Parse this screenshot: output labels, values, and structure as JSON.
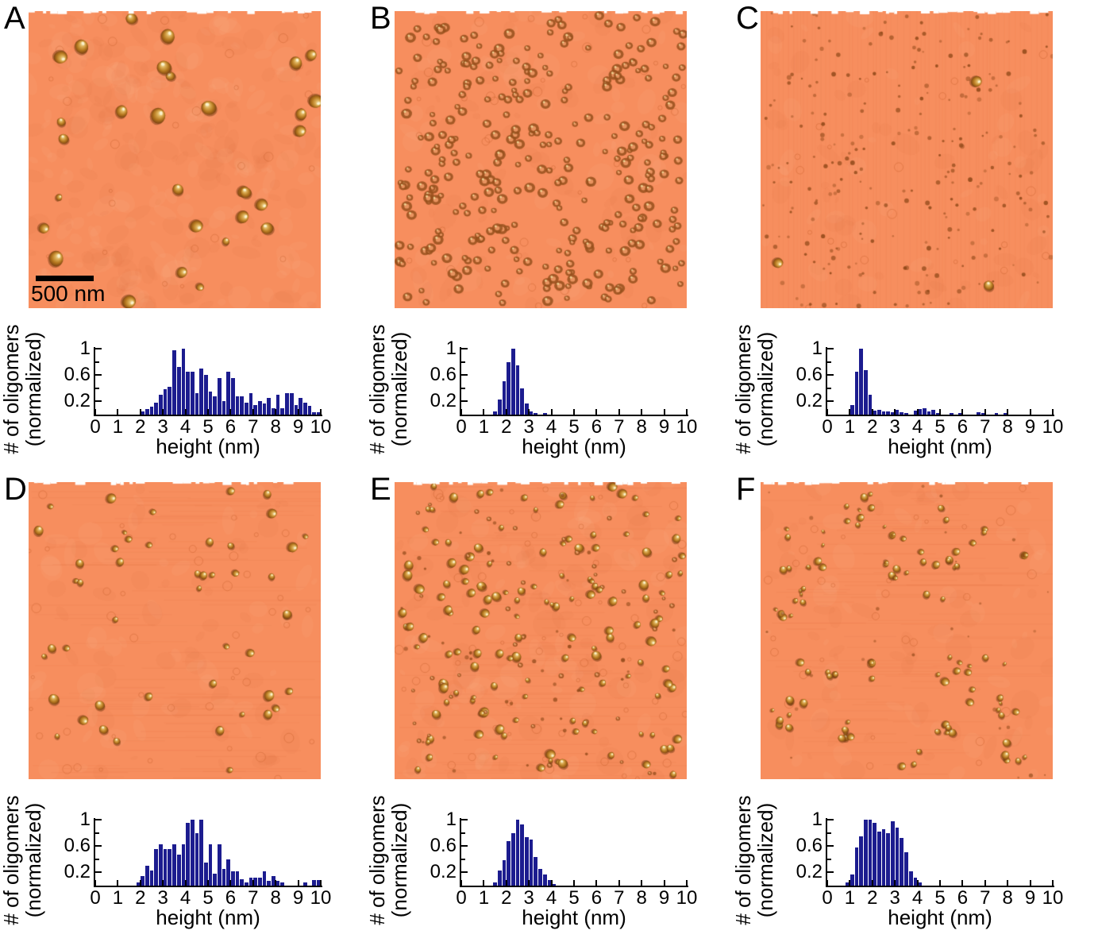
{
  "figure": {
    "axes": {
      "ylabel_line1": "# of oligomers",
      "ylabel_line2": "(normalized)",
      "xlabel": "height (nm)",
      "xticks": [
        "0",
        "1",
        "2",
        "3",
        "4",
        "5",
        "6",
        "7",
        "8",
        "9",
        "10"
      ],
      "yticks": [
        "1",
        "0.6",
        "0.2"
      ],
      "xlim": [
        0,
        10
      ],
      "ylim": [
        0,
        1
      ]
    },
    "colors": {
      "page_background": "#FFFFFF",
      "afm_background": "#F78E5E",
      "particle_body": "#C8963E",
      "particle_rim": "#7A4010",
      "particle_highlight": "#F4E8B8",
      "bar_color": "#1C1C8F",
      "axis_color": "#000000",
      "scalebar_color": "#000000"
    },
    "panels": [
      {
        "letter": "A",
        "scalebar": {
          "label": "500 nm"
        },
        "afm": {
          "style": "blobs",
          "count": 30,
          "rmin": 4,
          "rmax": 10,
          "mottle": 300,
          "ghosts": 28,
          "texture": "none"
        }
      },
      {
        "letter": "B",
        "afm": {
          "style": "rings",
          "count": 320,
          "rmin": 3.5,
          "rmax": 7,
          "mottle": 120,
          "ghosts": 40,
          "texture": "none"
        }
      },
      {
        "letter": "C",
        "afm": {
          "style": "dots",
          "count": 250,
          "rmin": 1.2,
          "rmax": 3,
          "mottle": 80,
          "ghosts": 20,
          "texture": "v",
          "specials": 3
        }
      },
      {
        "letter": "D",
        "afm": {
          "style": "blobs",
          "count": 48,
          "rmin": 2.5,
          "rmax": 7,
          "mottle": 90,
          "ghosts": 45,
          "texture": "h"
        }
      },
      {
        "letter": "E",
        "afm": {
          "style": "mixed",
          "count": 225,
          "rmin": 1.6,
          "rmax": 6.5,
          "mottle": 140,
          "ghosts": 60,
          "texture": "h"
        }
      },
      {
        "letter": "F",
        "afm": {
          "style": "clusters",
          "clusters": 34,
          "rmin": 2,
          "rmax": 5.5,
          "mottle": 100,
          "ghosts": 30,
          "texture": "h"
        }
      }
    ]
  },
  "chart_data": [
    {
      "panel": "A",
      "type": "bar",
      "title": "",
      "xlabel": "height (nm)",
      "ylabel": "# of oligomers (normalized)",
      "xlim": [
        0,
        10
      ],
      "ylim": [
        0,
        1
      ],
      "grid": false,
      "bin_width": 0.2,
      "first_bin_left": 2.0,
      "values": [
        0.05,
        0.08,
        0.12,
        0.18,
        0.3,
        0.38,
        0.42,
        0.97,
        0.72,
        1.0,
        0.65,
        0.65,
        0.33,
        0.7,
        0.6,
        0.35,
        0.28,
        0.55,
        0.2,
        0.65,
        0.55,
        0.28,
        0.28,
        0.18,
        0.32,
        0.15,
        0.2,
        0.17,
        0.25,
        0.1,
        0.3,
        0.1,
        0.32,
        0.32,
        0.15,
        0.25,
        0.18,
        0.13,
        0.04,
        0.04
      ]
    },
    {
      "panel": "B",
      "type": "bar",
      "title": "",
      "xlabel": "height (nm)",
      "ylabel": "# of oligomers (normalized)",
      "xlim": [
        0,
        10
      ],
      "ylim": [
        0,
        1
      ],
      "grid": false,
      "bin_width": 0.2,
      "first_bin_left": 1.4,
      "values": [
        0.05,
        0.23,
        0.5,
        0.8,
        1.0,
        0.75,
        0.4,
        0.17,
        0.05,
        0.02,
        0,
        0.02
      ]
    },
    {
      "panel": "C",
      "type": "bar",
      "title": "",
      "xlabel": "height (nm)",
      "ylabel": "# of oligomers (normalized)",
      "xlim": [
        0,
        10
      ],
      "ylim": [
        0,
        1
      ],
      "grid": false,
      "bin_width": 0.2,
      "first_bin_left": 1.0,
      "values": [
        0.15,
        0.65,
        1.0,
        0.67,
        0.3,
        0.06,
        0.07,
        0.05,
        0.05,
        0.04,
        0.07,
        0.04,
        0.03,
        0,
        0.06,
        0.08,
        0.1,
        0.05,
        0.07,
        0.03,
        0,
        0,
        0.02,
        0,
        0.03,
        0,
        0,
        0,
        0.04,
        0.03,
        0,
        0,
        0.03,
        0,
        0.02
      ]
    },
    {
      "panel": "D",
      "type": "bar",
      "title": "",
      "xlabel": "height (nm)",
      "ylabel": "# of oligomers (normalized)",
      "xlim": [
        0,
        10
      ],
      "ylim": [
        0,
        1
      ],
      "grid": false,
      "bin_width": 0.2,
      "first_bin_left": 1.8,
      "values": [
        0.05,
        0.15,
        0.3,
        0.23,
        0.55,
        0.63,
        0.55,
        0.55,
        0.63,
        0.47,
        0.63,
        0.95,
        1.0,
        0.8,
        1.0,
        0.35,
        0.63,
        0.18,
        0.63,
        0.25,
        0.4,
        0.22,
        0.22,
        0.1,
        0.05,
        0.12,
        0.12,
        0.12,
        0.22,
        0.07,
        0.15,
        0.07,
        0.05,
        0,
        0,
        0,
        0,
        0.05,
        0,
        0.08,
        0.08
      ]
    },
    {
      "panel": "E",
      "type": "bar",
      "title": "",
      "xlabel": "height (nm)",
      "ylabel": "# of oligomers (normalized)",
      "xlim": [
        0,
        10
      ],
      "ylim": [
        0,
        1
      ],
      "grid": false,
      "bin_width": 0.2,
      "first_bin_left": 1.4,
      "values": [
        0.05,
        0.23,
        0.38,
        0.67,
        0.8,
        1.0,
        0.93,
        0.73,
        0.7,
        0.43,
        0.25,
        0.17,
        0.08,
        0.03
      ]
    },
    {
      "panel": "F",
      "type": "bar",
      "title": "",
      "xlabel": "height (nm)",
      "ylabel": "# of oligomers (normalized)",
      "xlim": [
        0,
        10
      ],
      "ylim": [
        0,
        1
      ],
      "grid": false,
      "bin_width": 0.2,
      "first_bin_left": 0.8,
      "values": [
        0.05,
        0.17,
        0.58,
        0.75,
        1.0,
        1.0,
        0.95,
        0.82,
        0.85,
        0.8,
        0.98,
        0.88,
        0.72,
        0.5,
        0.22,
        0.12,
        0.05
      ]
    }
  ]
}
